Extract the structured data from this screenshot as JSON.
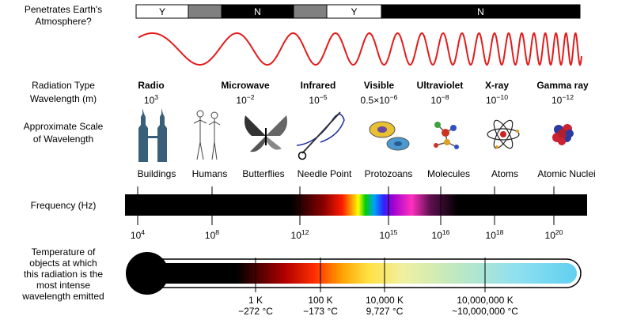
{
  "atmosphere": {
    "label_line1": "Penetrates Earth's",
    "label_line2": "Atmosphere?",
    "segments": [
      {
        "text": "Y",
        "fill": "#ffffff",
        "text_color": "#000000"
      },
      {
        "text": "",
        "fill": "#808080",
        "text_color": "#000000"
      },
      {
        "text": "N",
        "fill": "#000000",
        "text_color": "#ffffff"
      },
      {
        "text": "",
        "fill": "#808080",
        "text_color": "#000000"
      },
      {
        "text": "Y",
        "fill": "#ffffff",
        "text_color": "#000000"
      },
      {
        "text": "N",
        "fill": "#000000",
        "text_color": "#ffffff"
      }
    ]
  },
  "wave_color": "#e31b1b",
  "row_labels": {
    "radiation_type": "Radiation Type",
    "wavelength": "Wavelength (m)",
    "scale_line1": "Approximate Scale",
    "scale_line2": "of Wavelength",
    "frequency": "Frequency (Hz)",
    "temperature": [
      "Temperature of",
      "objects at which",
      "this radiation is the",
      "most intense",
      "wavelength emitted"
    ]
  },
  "radiation": [
    {
      "name": "Radio",
      "base": "10",
      "exp": "3"
    },
    {
      "name": "Microwave",
      "base": "10",
      "exp": "−2"
    },
    {
      "name": "Infrared",
      "base": "10",
      "exp": "−5"
    },
    {
      "name": "Visible",
      "base": "0.5×10",
      "exp": "−6"
    },
    {
      "name": "Ultraviolet",
      "base": "10",
      "exp": "−8"
    },
    {
      "name": "X-ray",
      "base": "10",
      "exp": "−10"
    },
    {
      "name": "Gamma ray",
      "base": "10",
      "exp": "−12"
    }
  ],
  "scale_objects": [
    {
      "label": "Buildings",
      "icon": "twin-towers-icon"
    },
    {
      "label": "Humans",
      "icon": "humans-icon"
    },
    {
      "label": "Butterflies",
      "icon": "butterfly-icon"
    },
    {
      "label": "Needle Point",
      "icon": "needle-icon"
    },
    {
      "label": "Protozoans",
      "icon": "protozoan-icon"
    },
    {
      "label": "Molecules",
      "icon": "molecule-icon"
    },
    {
      "label": "Atoms",
      "icon": "atom-icon"
    },
    {
      "label": "Atomic Nuclei",
      "icon": "nucleus-icon"
    }
  ],
  "frequency_ticks": [
    {
      "base": "10",
      "exp": "4"
    },
    {
      "base": "10",
      "exp": "8"
    },
    {
      "base": "10",
      "exp": "12"
    },
    {
      "base": "10",
      "exp": "15"
    },
    {
      "base": "10",
      "exp": "16"
    },
    {
      "base": "10",
      "exp": "18"
    },
    {
      "base": "10",
      "exp": "20"
    }
  ],
  "temperature_ticks": [
    {
      "kelvin": "1 K",
      "celsius": "−272 °C"
    },
    {
      "kelvin": "100 K",
      "celsius": "−173 °C"
    },
    {
      "kelvin": "10,000 K",
      "celsius": "9,727 °C"
    },
    {
      "kelvin": "10,000,000 K",
      "celsius": "~10,000,000 °C"
    }
  ]
}
